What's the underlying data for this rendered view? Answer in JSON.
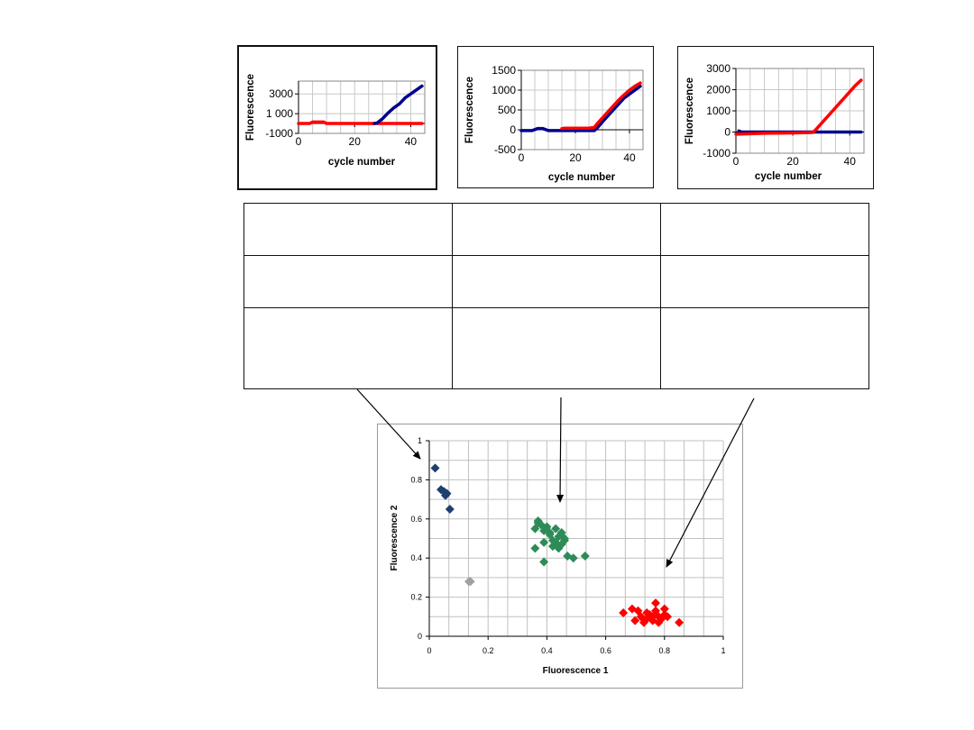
{
  "chart_data": [
    {
      "type": "line",
      "id": "panel1",
      "xlabel": "cycle number",
      "ylabel": "Fluorescence",
      "ylim": [
        -1000,
        4300
      ],
      "xlim": [
        0,
        45
      ],
      "xticks": [
        0,
        20,
        40
      ],
      "xtick_labels": [
        "0",
        "20",
        "40"
      ],
      "yticks": [
        -1000,
        1000,
        3000
      ],
      "ytick_labels": [
        "-1000",
        "1 000",
        "3000"
      ],
      "series": [
        {
          "name": "red",
          "color": "#ff0000",
          "x": [
            0,
            4,
            5,
            6,
            9,
            10,
            27,
            30,
            35,
            40,
            44
          ],
          "y": [
            0,
            0,
            150,
            150,
            150,
            0,
            0,
            0,
            0,
            0,
            0
          ]
        },
        {
          "name": "blue",
          "color": "#00008b",
          "x": [
            27,
            28,
            30,
            32,
            34,
            36,
            38,
            40,
            42,
            44
          ],
          "y": [
            0,
            50,
            500,
            1100,
            1600,
            2000,
            2600,
            3000,
            3400,
            3800
          ]
        }
      ]
    },
    {
      "type": "line",
      "id": "panel2",
      "xlabel": "cycle number",
      "ylabel": "Fluorescence",
      "ylim": [
        -500,
        1500
      ],
      "xlim": [
        0,
        45
      ],
      "xticks": [
        0,
        20,
        40
      ],
      "xtick_labels": [
        "0",
        "20",
        "40"
      ],
      "yticks": [
        -500,
        0,
        500,
        1000,
        1500
      ],
      "ytick_labels": [
        "-500",
        "0",
        "500",
        "1000",
        "1500"
      ],
      "series": [
        {
          "name": "blue",
          "color": "#00008b",
          "x": [
            0,
            4,
            6,
            8,
            10,
            20,
            27,
            28,
            30,
            32,
            34,
            36,
            38,
            40,
            42,
            44
          ],
          "y": [
            -20,
            -20,
            30,
            30,
            -20,
            -20,
            -20,
            40,
            200,
            350,
            500,
            650,
            800,
            900,
            1000,
            1100
          ]
        },
        {
          "name": "red",
          "color": "#ff0000",
          "x": [
            15,
            16,
            18,
            20,
            25,
            27,
            28,
            30,
            32,
            34,
            36,
            38,
            40,
            42,
            44
          ],
          "y": [
            30,
            40,
            40,
            40,
            40,
            60,
            150,
            300,
            450,
            600,
            750,
            880,
            1000,
            1100,
            1180
          ]
        }
      ]
    },
    {
      "type": "line",
      "id": "panel3",
      "xlabel": "cycle number",
      "ylabel": "Fluorescence",
      "ylim": [
        -1000,
        3000
      ],
      "xlim": [
        0,
        45
      ],
      "xticks": [
        0,
        20,
        40
      ],
      "xtick_labels": [
        "0",
        "20",
        "40"
      ],
      "yticks": [
        -1000,
        0,
        1000,
        2000,
        3000
      ],
      "ytick_labels": [
        "-1000",
        "0",
        "1000",
        "2000",
        "3000"
      ],
      "series": [
        {
          "name": "blue",
          "color": "#00008b",
          "x": [
            1,
            2,
            3,
            20,
            25,
            30,
            35,
            40,
            44
          ],
          "y": [
            50,
            0,
            0,
            0,
            0,
            0,
            0,
            0,
            0
          ]
        },
        {
          "name": "red",
          "color": "#ff0000",
          "x": [
            0,
            5,
            10,
            20,
            27,
            28,
            30,
            32,
            34,
            36,
            38,
            40,
            42,
            44
          ],
          "y": [
            -100,
            -80,
            -60,
            -40,
            -20,
            100,
            400,
            700,
            1000,
            1300,
            1600,
            1900,
            2200,
            2450
          ]
        }
      ]
    },
    {
      "type": "scatter",
      "id": "scatter",
      "xlabel": "Fluorescence 1",
      "ylabel": "Fluorescence 2",
      "xlim": [
        0,
        1
      ],
      "ylim": [
        0,
        1
      ],
      "xticks": [
        0,
        0.2,
        0.4,
        0.6,
        0.8,
        1
      ],
      "xtick_labels": [
        "0",
        "0.2",
        "0.4",
        "0.6",
        "0.8",
        "1"
      ],
      "yticks": [
        0,
        0.2,
        0.4,
        0.6,
        0.8,
        1
      ],
      "ytick_labels": [
        "0",
        "0.2",
        "0.4",
        "0.6",
        "0.8",
        "1"
      ],
      "grid": true,
      "series": [
        {
          "name": "cluster-dark-blue",
          "color": "#1f3f6f",
          "points": [
            [
              0.02,
              0.86
            ],
            [
              0.04,
              0.75
            ],
            [
              0.05,
              0.74
            ],
            [
              0.06,
              0.73
            ],
            [
              0.055,
              0.72
            ],
            [
              0.07,
              0.65
            ]
          ]
        },
        {
          "name": "cluster-green",
          "color": "#2e8b57",
          "points": [
            [
              0.36,
              0.55
            ],
            [
              0.37,
              0.59
            ],
            [
              0.38,
              0.57
            ],
            [
              0.39,
              0.54
            ],
            [
              0.4,
              0.56
            ],
            [
              0.41,
              0.52
            ],
            [
              0.42,
              0.49
            ],
            [
              0.43,
              0.47
            ],
            [
              0.44,
              0.51
            ],
            [
              0.45,
              0.53
            ],
            [
              0.46,
              0.5
            ],
            [
              0.44,
              0.45
            ],
            [
              0.43,
              0.48
            ],
            [
              0.42,
              0.46
            ],
            [
              0.45,
              0.47
            ],
            [
              0.39,
              0.48
            ],
            [
              0.36,
              0.45
            ],
            [
              0.47,
              0.41
            ],
            [
              0.49,
              0.4
            ],
            [
              0.53,
              0.41
            ],
            [
              0.39,
              0.38
            ],
            [
              0.41,
              0.53
            ],
            [
              0.43,
              0.55
            ],
            [
              0.37,
              0.58
            ],
            [
              0.46,
              0.49
            ]
          ]
        },
        {
          "name": "cluster-gray",
          "color": "#a0a0a0",
          "points": [
            [
              0.14,
              0.28
            ],
            [
              0.135,
              0.28
            ]
          ]
        },
        {
          "name": "cluster-red",
          "color": "#ff0000",
          "points": [
            [
              0.66,
              0.12
            ],
            [
              0.69,
              0.14
            ],
            [
              0.7,
              0.08
            ],
            [
              0.71,
              0.13
            ],
            [
              0.72,
              0.1
            ],
            [
              0.73,
              0.07
            ],
            [
              0.74,
              0.09
            ],
            [
              0.75,
              0.11
            ],
            [
              0.76,
              0.08
            ],
            [
              0.77,
              0.13
            ],
            [
              0.77,
              0.17
            ],
            [
              0.78,
              0.1
            ],
            [
              0.79,
              0.09
            ],
            [
              0.8,
              0.11
            ],
            [
              0.8,
              0.14
            ],
            [
              0.81,
              0.1
            ],
            [
              0.78,
              0.07
            ],
            [
              0.76,
              0.1
            ],
            [
              0.85,
              0.07
            ],
            [
              0.74,
              0.12
            ]
          ]
        }
      ]
    }
  ]
}
